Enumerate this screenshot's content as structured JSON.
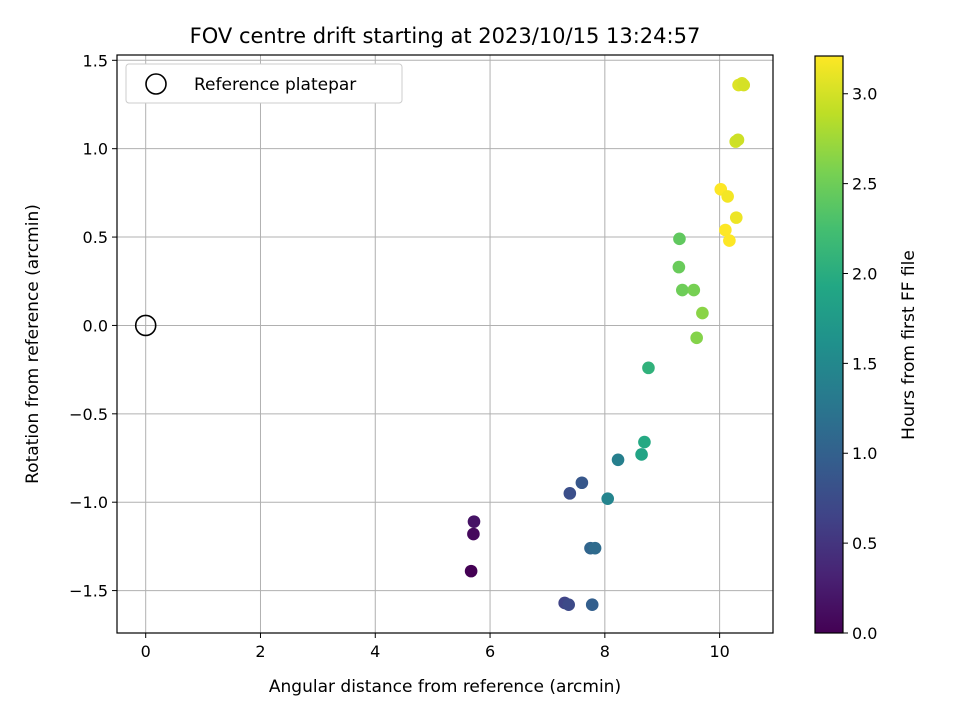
{
  "chart_data": {
    "type": "scatter",
    "title": "FOV centre drift starting at 2023/10/15 13:24:57",
    "xlabel": "Angular distance from reference (arcmin)",
    "ylabel": "Rotation from reference (arcmin)",
    "xlim": [
      -0.5,
      10.93
    ],
    "ylim": [
      -1.74,
      1.53
    ],
    "x_ticks": [
      0,
      2,
      4,
      6,
      8,
      10
    ],
    "x_tick_labels": [
      "0",
      "2",
      "4",
      "6",
      "8",
      "10"
    ],
    "y_ticks": [
      -1.5,
      -1.0,
      -0.5,
      0.0,
      0.5,
      1.0,
      1.5
    ],
    "y_tick_labels": [
      "−1.5",
      "−1.0",
      "−0.5",
      "0.0",
      "0.5",
      "1.0",
      "1.5"
    ],
    "grid": true,
    "legend": {
      "position": "upper-left",
      "entries": [
        {
          "label": "Reference platepar",
          "marker": "open-circle",
          "color": "#000000"
        }
      ]
    },
    "reference_point": {
      "label": "Reference platepar",
      "x": 0.0,
      "y": 0.0
    },
    "colorbar": {
      "label": "Hours from first FF file",
      "colormap": "viridis",
      "range": [
        0.0,
        3.21
      ],
      "ticks": [
        0.0,
        0.5,
        1.0,
        1.5,
        2.0,
        2.5,
        3.0
      ],
      "tick_labels": [
        "0.0",
        "0.5",
        "1.0",
        "1.5",
        "2.0",
        "2.5",
        "3.0"
      ]
    },
    "series": [
      {
        "marker": "filled-circle",
        "colored_by": "hours",
        "points": [
          {
            "x": 5.67,
            "y": -1.39,
            "c": 0.0
          },
          {
            "x": 5.71,
            "y": -1.18,
            "c": 0.08
          },
          {
            "x": 5.72,
            "y": -1.11,
            "c": 0.17
          },
          {
            "x": 7.3,
            "y": -1.57,
            "c": 0.65
          },
          {
            "x": 7.37,
            "y": -1.58,
            "c": 0.72
          },
          {
            "x": 7.39,
            "y": -0.95,
            "c": 0.78
          },
          {
            "x": 7.6,
            "y": -0.89,
            "c": 0.88
          },
          {
            "x": 7.78,
            "y": -1.58,
            "c": 0.98
          },
          {
            "x": 7.75,
            "y": -1.26,
            "c": 1.05
          },
          {
            "x": 7.83,
            "y": -1.26,
            "c": 1.12
          },
          {
            "x": 8.05,
            "y": -0.98,
            "c": 1.45
          },
          {
            "x": 8.23,
            "y": -0.76,
            "c": 1.38
          },
          {
            "x": 8.64,
            "y": -0.73,
            "c": 1.88
          },
          {
            "x": 8.69,
            "y": -0.66,
            "c": 1.95
          },
          {
            "x": 8.76,
            "y": -0.24,
            "c": 2.07
          },
          {
            "x": 9.3,
            "y": 0.49,
            "c": 2.42
          },
          {
            "x": 9.29,
            "y": 0.33,
            "c": 2.47
          },
          {
            "x": 9.35,
            "y": 0.2,
            "c": 2.5
          },
          {
            "x": 9.55,
            "y": 0.2,
            "c": 2.55
          },
          {
            "x": 9.6,
            "y": -0.07,
            "c": 2.62
          },
          {
            "x": 9.7,
            "y": 0.07,
            "c": 2.65
          },
          {
            "x": 10.02,
            "y": 0.77,
            "c": 3.21
          },
          {
            "x": 10.14,
            "y": 0.73,
            "c": 3.16
          },
          {
            "x": 10.1,
            "y": 0.54,
            "c": 3.21
          },
          {
            "x": 10.17,
            "y": 0.48,
            "c": 3.21
          },
          {
            "x": 10.29,
            "y": 0.61,
            "c": 3.13
          },
          {
            "x": 10.28,
            "y": 1.04,
            "c": 2.98
          },
          {
            "x": 10.32,
            "y": 1.05,
            "c": 2.97
          },
          {
            "x": 10.33,
            "y": 1.36,
            "c": 3.05
          },
          {
            "x": 10.39,
            "y": 1.37,
            "c": 3.03
          },
          {
            "x": 10.42,
            "y": 1.36,
            "c": 3.01
          }
        ]
      }
    ]
  }
}
